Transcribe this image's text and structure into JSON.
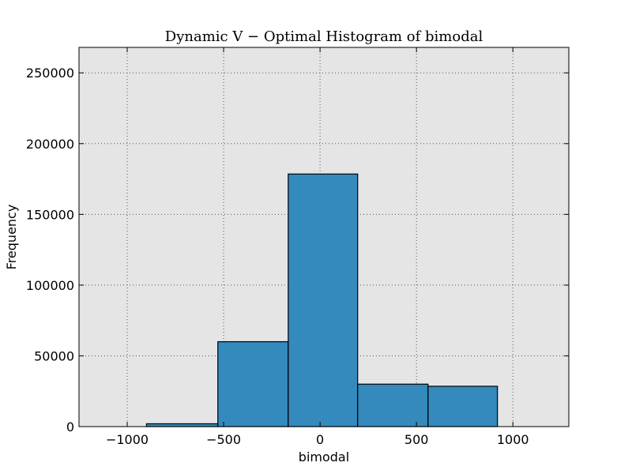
{
  "chart_data": {
    "type": "bar",
    "title": "Dynamic V − Optimal Histogram of bimodal",
    "xlabel": "bimodal",
    "ylabel": "Frequency",
    "xlim": [
      -1250,
      1290
    ],
    "ylim": [
      0,
      268000
    ],
    "xticks": [
      -1000,
      -500,
      0,
      500,
      1000
    ],
    "xtick_labels": [
      "−1000",
      "−500",
      "0",
      "500",
      "1000"
    ],
    "yticks": [
      0,
      50000,
      100000,
      150000,
      200000,
      250000
    ],
    "ytick_labels": [
      "0",
      "50000",
      "100000",
      "150000",
      "200000",
      "250000"
    ],
    "grid": true,
    "bins": [
      {
        "x0": -900,
        "x1": -530,
        "value": 2000
      },
      {
        "x0": -530,
        "x1": -165,
        "value": 60000
      },
      {
        "x0": -165,
        "x1": 195,
        "value": 178500
      },
      {
        "x0": 195,
        "x1": 560,
        "value": 30000
      },
      {
        "x0": 560,
        "x1": 920,
        "value": 28500
      }
    ],
    "colors": {
      "bar": "#348abd",
      "plot_background": "#e5e5e5",
      "grid": "#555555"
    }
  }
}
